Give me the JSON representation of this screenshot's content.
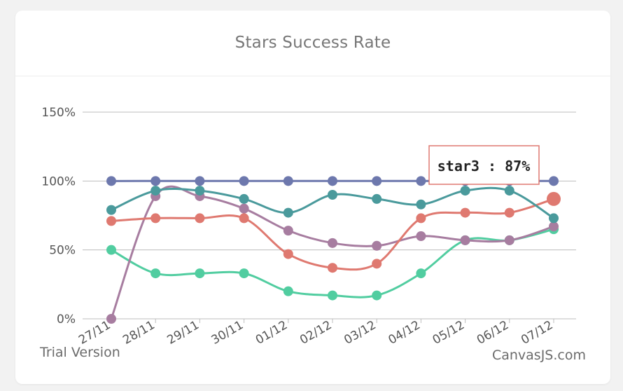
{
  "card": {
    "title": "Stars Success Rate"
  },
  "chart_data": {
    "type": "line",
    "title": "Stars Success Rate",
    "xlabel": "",
    "ylabel": "",
    "categories": [
      "27/11",
      "28/11",
      "29/11",
      "30/11",
      "01/12",
      "02/12",
      "03/12",
      "04/12",
      "05/12",
      "06/12",
      "07/12"
    ],
    "yticks": [
      "0%",
      "50%",
      "100%",
      "150%"
    ],
    "ylim": [
      0,
      150
    ],
    "grid": true,
    "legend": "none",
    "series": [
      {
        "key": "s_slate",
        "color": "#6D78AD",
        "values": [
          100,
          100,
          100,
          100,
          100,
          100,
          100,
          100,
          100,
          100,
          100
        ]
      },
      {
        "key": "s_teal",
        "color": "#4A9A9C",
        "values": [
          79,
          93,
          93,
          87,
          77,
          90,
          87,
          83,
          93,
          93,
          73
        ]
      },
      {
        "name": "star3",
        "key": "s_red",
        "color": "#DF7970",
        "values": [
          71,
          73,
          73,
          73,
          47,
          37,
          40,
          73,
          77,
          77,
          87
        ]
      },
      {
        "key": "s_purple",
        "color": "#A77DA0",
        "values": [
          0,
          89,
          89,
          80,
          64,
          55,
          53,
          60,
          57,
          57,
          67
        ]
      },
      {
        "key": "s_green",
        "color": "#51CDA0",
        "values": [
          50,
          33,
          33,
          33,
          20,
          17,
          17,
          33,
          57,
          57,
          65
        ]
      }
    ],
    "highlight": {
      "series": "s_red",
      "index": 10
    },
    "tooltip": {
      "series_name": "star3",
      "separator": " : ",
      "value_text": "87%"
    }
  },
  "watermark": {
    "left": "Trial Version",
    "right": "CanvasJS.com"
  }
}
